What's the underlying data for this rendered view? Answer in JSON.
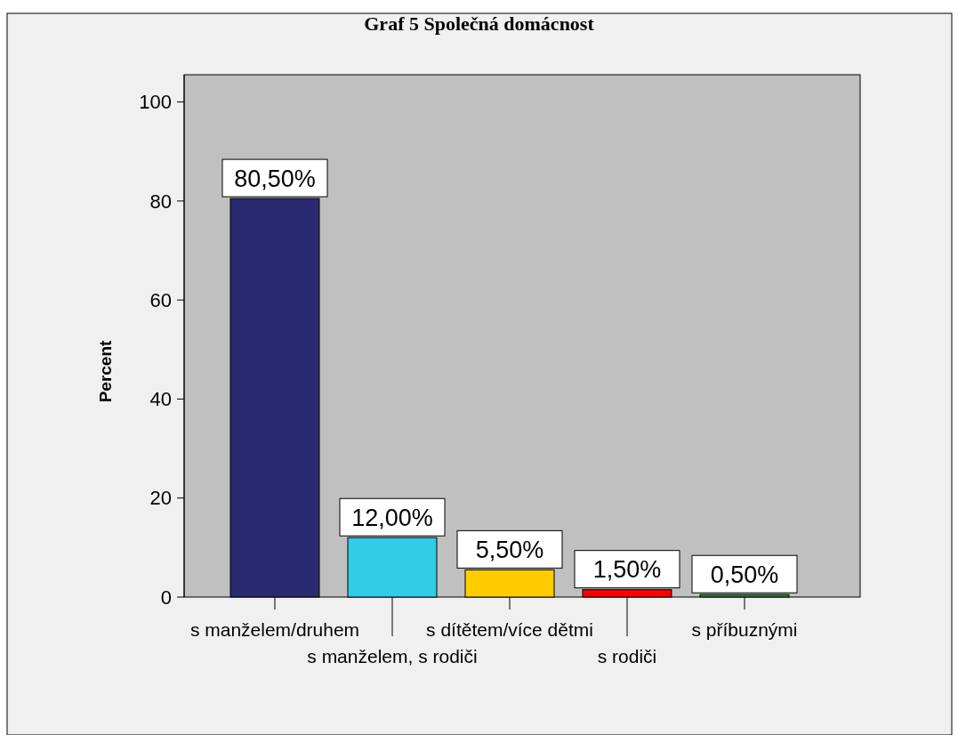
{
  "chart_data": {
    "type": "bar",
    "title": "Graf 5 Společná domácnost",
    "ylabel": "Percent",
    "categories": [
      "s manželem/druhem",
      "s manželem, s rodiči",
      "s dítětem/více dětmi",
      "s rodiči",
      "s příbuznými"
    ],
    "values": [
      80.5,
      12,
      5.5,
      1.5,
      0.5
    ],
    "colors": [
      "#2a2a70",
      "#33cce6",
      "#ffcc00",
      "#ff0000",
      "#2e8b2e"
    ],
    "value_labels": [
      "80,50%",
      "12,00%",
      "5,50%",
      "1,50%",
      "0,50%"
    ],
    "ylim": [
      0,
      105.5
    ],
    "yticks": [
      0,
      20,
      40,
      60,
      80,
      100
    ],
    "grid": false
  }
}
